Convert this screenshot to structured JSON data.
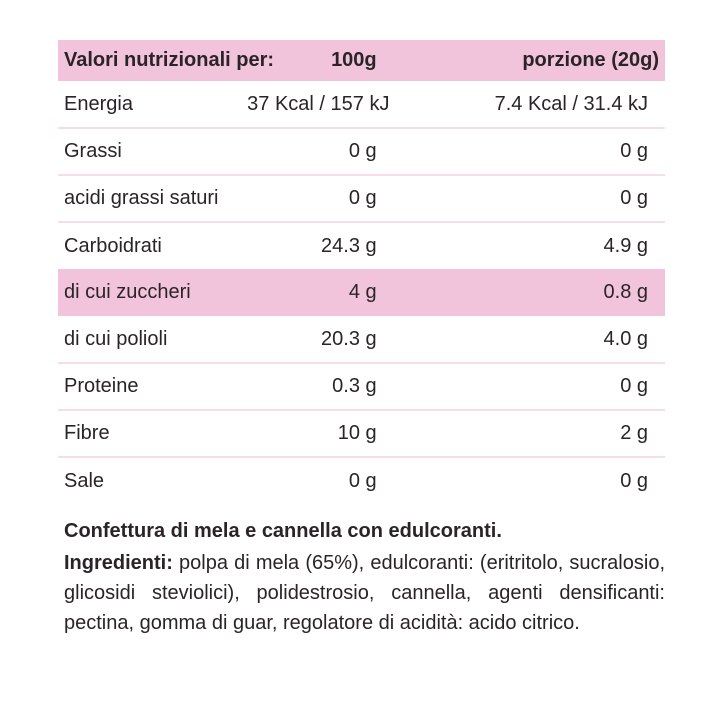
{
  "colors": {
    "header_bg": "#f2c4dc",
    "highlight_row_bg": "#f2c4dc",
    "divider": "#f8dcea",
    "text": "#2a2428",
    "background": "#ffffff"
  },
  "table": {
    "header": {
      "label": "Valori nutrizionali per:",
      "col_100g": "100g",
      "col_portion": "porzione (20g)"
    },
    "rows": [
      {
        "label": "Energia",
        "per_100g": "37 Kcal / 157 kJ",
        "per_portion": "7.4 Kcal / 31.4 kJ",
        "highlight": false
      },
      {
        "label": "Grassi",
        "per_100g": "0 g",
        "per_portion": "0 g",
        "highlight": false
      },
      {
        "label": "acidi grassi saturi",
        "per_100g": "0 g",
        "per_portion": "0 g",
        "highlight": false
      },
      {
        "label": "Carboidrati",
        "per_100g": "24.3 g",
        "per_portion": "4.9 g",
        "highlight": false
      },
      {
        "label": "di cui zuccheri",
        "per_100g": "4 g",
        "per_portion": "0.8 g",
        "highlight": true
      },
      {
        "label": "di cui polioli",
        "per_100g": "20.3 g",
        "per_portion": "4.0 g",
        "highlight": false
      },
      {
        "label": "Proteine",
        "per_100g": "0.3 g",
        "per_portion": "0 g",
        "highlight": false
      },
      {
        "label": "Fibre",
        "per_100g": "10 g",
        "per_portion": "2 g",
        "highlight": false
      },
      {
        "label": "Sale",
        "per_100g": "0 g",
        "per_portion": "0 g",
        "highlight": false
      }
    ]
  },
  "description": {
    "title": "Confettura di mela e cannella con edulcoranti.",
    "ingredients_label": "Ingredienti:",
    "ingredients_text": " polpa di mela (65%), edulcoranti: (eritritolo, sucralosio, glicosidi steviolici), polidestrosio, cannella, agenti densificanti: pectina, gomma di guar, regolatore di acidità: acido citrico."
  }
}
